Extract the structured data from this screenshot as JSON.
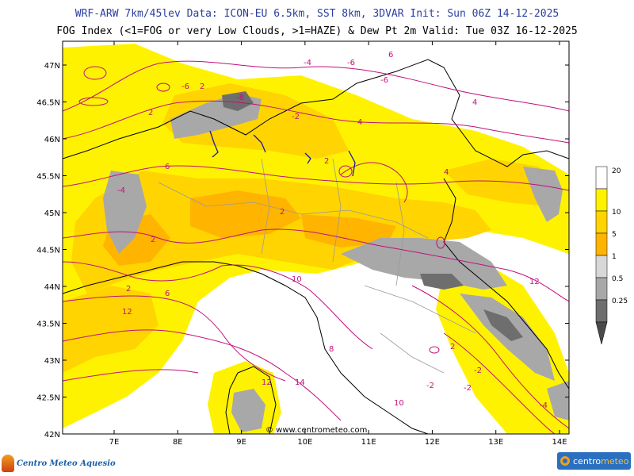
{
  "header": {
    "line1": "WRF-ARW 7km/45lev   Data: ICON-EU 6.5km, SST 8km, 3DVAR   Init: Sun 06Z 14-12-2025",
    "line2": "FOG Index (<1=FOG or very Low Clouds, >1=HAZE) & Dew Pt 2m   Valid: Tue 03Z 16-12-2025"
  },
  "map": {
    "lat_labels": [
      "47N",
      "46.5N",
      "46N",
      "45.5N",
      "45N",
      "44.5N",
      "44N",
      "43.5N",
      "43N",
      "42.5N",
      "42N"
    ],
    "lon_labels": [
      "7E",
      "8E",
      "9E",
      "10E",
      "11E",
      "12E",
      "13E",
      "14E"
    ],
    "watermark": "© www.centrometeo.com",
    "contour_labels": [
      "-4",
      "-6",
      "-6",
      "-8",
      "-6",
      "-4",
      "-2",
      "2",
      "2",
      "2",
      "2",
      "2",
      "2",
      "4",
      "4",
      "4",
      "6",
      "6",
      "6",
      "8",
      "10",
      "10",
      "12",
      "12",
      "12",
      "14",
      "-2",
      "-2",
      "-2",
      "2",
      "-4"
    ]
  },
  "colorbar": {
    "labels": [
      "20",
      "10",
      "5",
      "1",
      "0.5",
      "0.25"
    ],
    "colors": [
      "#ffffff",
      "#fff200",
      "#ffd400",
      "#ffb400",
      "#d8d8d8",
      "#a8a8a8",
      "#6e6e6e"
    ]
  },
  "logos": {
    "left": "Centro Meteo Aquesio",
    "right_prefix": "centro",
    "right_suffix": "meteo"
  }
}
